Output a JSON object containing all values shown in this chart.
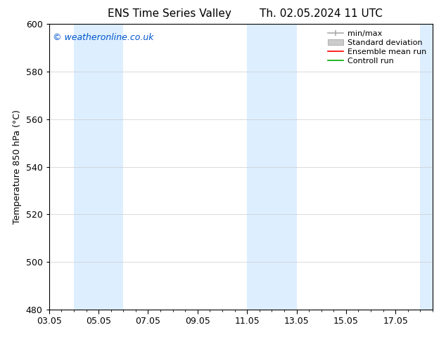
{
  "title_left": "ENS Time Series Valley",
  "title_right": "Th. 02.05.2024 11 UTC",
  "ylabel": "Temperature 850 hPa (°C)",
  "xtick_labels": [
    "03.05",
    "05.05",
    "07.05",
    "09.05",
    "11.05",
    "13.05",
    "15.05",
    "17.05"
  ],
  "xtick_positions": [
    0,
    2,
    4,
    6,
    8,
    10,
    12,
    14
  ],
  "xlim": [
    0,
    15.5
  ],
  "ylim": [
    480,
    600
  ],
  "yticks": [
    480,
    500,
    520,
    540,
    560,
    580,
    600
  ],
  "bg_color": "#ffffff",
  "plot_bg_color": "#ffffff",
  "shaded_bands": [
    {
      "x_start": 1.0,
      "x_end": 3.0,
      "color": "#ddeeff"
    },
    {
      "x_start": 8.0,
      "x_end": 10.0,
      "color": "#ddeeff"
    },
    {
      "x_start": 15.0,
      "x_end": 15.5,
      "color": "#ddeeff"
    }
  ],
  "watermark_text": "© weatheronline.co.uk",
  "watermark_color": "#0055cc",
  "legend_labels": [
    "min/max",
    "Standard deviation",
    "Ensemble mean run",
    "Controll run"
  ],
  "legend_colors": [
    "#aaaaaa",
    "#cccccc",
    "#ff0000",
    "#00aa00"
  ],
  "grid_color": "#cccccc",
  "tick_color": "#000000",
  "axis_label_fontsize": 9,
  "tick_fontsize": 9,
  "title_fontsize": 11,
  "watermark_fontsize": 9,
  "legend_fontsize": 8
}
